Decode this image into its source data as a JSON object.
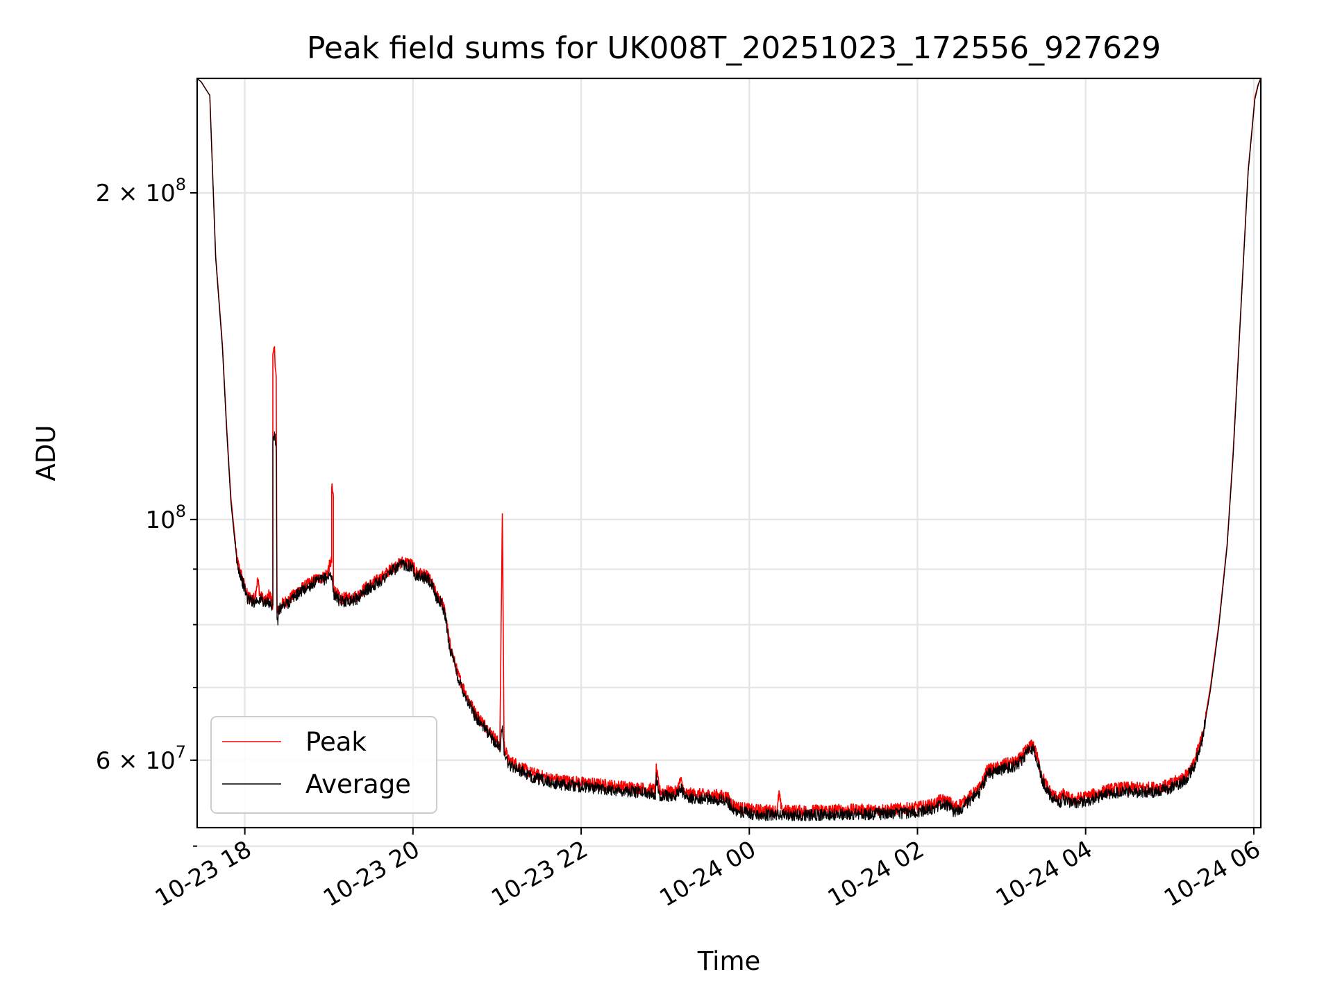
{
  "chart_data": {
    "type": "line",
    "title": "Peak field sums for UK008T_20251023_172556_927629",
    "xlabel": "Time",
    "ylabel": "ADU",
    "yscale": "log",
    "x_unit": "hours since 2025-10-23 17:25",
    "xlim": [
      0.0,
      12.65
    ],
    "ylim": [
      52000000,
      255000000
    ],
    "grid": true,
    "legend_position": "lower-left",
    "x_ticks": [
      {
        "value": 0.5667,
        "label": "10-23 18"
      },
      {
        "value": 2.5667,
        "label": "10-23 20"
      },
      {
        "value": 4.5667,
        "label": "10-23 22"
      },
      {
        "value": 6.5667,
        "label": "10-24 00"
      },
      {
        "value": 8.5667,
        "label": "10-24 02"
      },
      {
        "value": 10.5667,
        "label": "10-24 04"
      },
      {
        "value": 12.5667,
        "label": "10-24 06"
      }
    ],
    "y_major_ticks": [
      {
        "value": 60000000,
        "label": "6 × 10",
        "exp": "7"
      },
      {
        "value": 100000000,
        "label": "10",
        "exp": "8"
      },
      {
        "value": 200000000,
        "label": "2 × 10",
        "exp": "8"
      }
    ],
    "y_minor_ticks": [
      50000000,
      60000000,
      70000000,
      80000000,
      90000000,
      200000000
    ],
    "series": [
      {
        "name": "Peak",
        "color": "#ff0000",
        "points": [
          [
            0.0,
            255000000
          ],
          [
            0.05,
            253000000
          ],
          [
            0.12,
            248000000
          ],
          [
            0.15,
            246000000
          ],
          [
            0.22,
            175000000
          ],
          [
            0.3,
            145000000
          ],
          [
            0.35,
            122000000
          ],
          [
            0.4,
            105000000
          ],
          [
            0.45,
            96000000
          ],
          [
            0.47,
            92000000
          ],
          [
            0.55,
            87500000
          ],
          [
            0.6,
            85000000
          ],
          [
            0.68,
            84500000
          ],
          [
            0.72,
            88000000
          ],
          [
            0.75,
            85000000
          ],
          [
            0.82,
            84000000
          ],
          [
            0.86,
            85500000
          ],
          [
            0.9,
            83500000
          ],
          [
            0.9,
            141000000
          ],
          [
            0.92,
            143000000
          ],
          [
            0.94,
            135000000
          ],
          [
            0.95,
            82000000
          ],
          [
            1.0,
            83500000
          ],
          [
            1.1,
            84500000
          ],
          [
            1.2,
            86000000
          ],
          [
            1.4,
            88000000
          ],
          [
            1.5,
            88500000
          ],
          [
            1.55,
            89500000
          ],
          [
            1.58,
            91000000
          ],
          [
            1.6,
            91500000
          ],
          [
            1.6,
            107000000
          ],
          [
            1.62,
            105000000
          ],
          [
            1.62,
            86500000
          ],
          [
            1.7,
            84500000
          ],
          [
            1.9,
            85000000
          ],
          [
            2.0,
            86500000
          ],
          [
            2.1,
            87500000
          ],
          [
            2.2,
            88500000
          ],
          [
            2.3,
            90000000
          ],
          [
            2.45,
            91500000
          ],
          [
            2.55,
            91000000
          ],
          [
            2.6,
            89500000
          ],
          [
            2.75,
            88500000
          ],
          [
            2.8,
            87000000
          ],
          [
            2.85,
            85000000
          ],
          [
            2.9,
            84500000
          ],
          [
            2.95,
            82000000
          ],
          [
            3.0,
            77000000
          ],
          [
            3.1,
            72000000
          ],
          [
            3.2,
            69000000
          ],
          [
            3.3,
            66500000
          ],
          [
            3.5,
            63500000
          ],
          [
            3.6,
            62000000
          ],
          [
            3.63,
            102000000
          ],
          [
            3.65,
            62000000
          ],
          [
            3.7,
            60000000
          ],
          [
            3.8,
            59500000
          ],
          [
            3.95,
            58500000
          ],
          [
            4.2,
            57700000
          ],
          [
            4.5,
            57300000
          ],
          [
            4.8,
            57000000
          ],
          [
            5.1,
            56700000
          ],
          [
            5.45,
            56400000
          ],
          [
            5.46,
            58800000
          ],
          [
            5.5,
            56200000
          ],
          [
            5.7,
            56100000
          ],
          [
            5.75,
            57500000
          ],
          [
            5.8,
            55900000
          ],
          [
            6.2,
            55700000
          ],
          [
            6.3,
            55500000
          ],
          [
            6.4,
            54400000
          ],
          [
            6.6,
            54000000
          ],
          [
            6.9,
            53900000
          ],
          [
            6.92,
            56000000
          ],
          [
            6.95,
            53900000
          ],
          [
            7.2,
            53900000
          ],
          [
            7.6,
            54000000
          ],
          [
            8.0,
            54000000
          ],
          [
            8.3,
            54100000
          ],
          [
            8.5,
            54200000
          ],
          [
            8.75,
            54600000
          ],
          [
            8.85,
            55200000
          ],
          [
            8.95,
            54900000
          ],
          [
            9.0,
            54300000
          ],
          [
            9.1,
            54800000
          ],
          [
            9.3,
            56500000
          ],
          [
            9.4,
            58800000
          ],
          [
            9.5,
            59000000
          ],
          [
            9.6,
            59500000
          ],
          [
            9.75,
            59800000
          ],
          [
            9.9,
            61800000
          ],
          [
            9.95,
            62000000
          ],
          [
            10.05,
            58000000
          ],
          [
            10.15,
            56000000
          ],
          [
            10.25,
            55300000
          ],
          [
            10.3,
            55800000
          ],
          [
            10.4,
            55200000
          ],
          [
            10.6,
            55600000
          ],
          [
            10.85,
            56400000
          ],
          [
            11.0,
            56600000
          ],
          [
            11.15,
            56600000
          ],
          [
            11.35,
            56600000
          ],
          [
            11.55,
            56900000
          ],
          [
            11.75,
            58000000
          ],
          [
            11.85,
            59500000
          ],
          [
            11.95,
            63000000
          ],
          [
            12.05,
            70000000
          ],
          [
            12.15,
            80000000
          ],
          [
            12.25,
            95000000
          ],
          [
            12.32,
            115000000
          ],
          [
            12.4,
            150000000
          ],
          [
            12.5,
            210000000
          ],
          [
            12.58,
            245000000
          ],
          [
            12.62,
            252000000
          ],
          [
            12.65,
            255000000
          ]
        ]
      },
      {
        "name": "Average",
        "color": "#000000",
        "points": [
          [
            0.0,
            255000000
          ],
          [
            0.05,
            253000000
          ],
          [
            0.12,
            248000000
          ],
          [
            0.15,
            246000000
          ],
          [
            0.22,
            174000000
          ],
          [
            0.3,
            144000000
          ],
          [
            0.35,
            121000000
          ],
          [
            0.4,
            104000000
          ],
          [
            0.45,
            95000000
          ],
          [
            0.47,
            91500000
          ],
          [
            0.55,
            87000000
          ],
          [
            0.6,
            84500000
          ],
          [
            0.68,
            84000000
          ],
          [
            0.75,
            84500000
          ],
          [
            0.82,
            83500000
          ],
          [
            0.86,
            84000000
          ],
          [
            0.9,
            83000000
          ],
          [
            0.9,
            118000000
          ],
          [
            0.92,
            120000000
          ],
          [
            0.94,
            116000000
          ],
          [
            0.95,
            81500000
          ],
          [
            0.96,
            80000000
          ],
          [
            0.97,
            82500000
          ],
          [
            1.0,
            83000000
          ],
          [
            1.1,
            84000000
          ],
          [
            1.2,
            85500000
          ],
          [
            1.4,
            87500000
          ],
          [
            1.5,
            88000000
          ],
          [
            1.6,
            89000000
          ],
          [
            1.62,
            85500000
          ],
          [
            1.7,
            84000000
          ],
          [
            1.9,
            84500000
          ],
          [
            2.0,
            86000000
          ],
          [
            2.1,
            87000000
          ],
          [
            2.2,
            88000000
          ],
          [
            2.3,
            89500000
          ],
          [
            2.45,
            91000000
          ],
          [
            2.55,
            90500000
          ],
          [
            2.6,
            89000000
          ],
          [
            2.75,
            88000000
          ],
          [
            2.8,
            86500000
          ],
          [
            2.85,
            84500000
          ],
          [
            2.9,
            84000000
          ],
          [
            2.95,
            81500000
          ],
          [
            3.0,
            76500000
          ],
          [
            3.1,
            71500000
          ],
          [
            3.2,
            68500000
          ],
          [
            3.3,
            66000000
          ],
          [
            3.5,
            63000000
          ],
          [
            3.6,
            61500000
          ],
          [
            3.63,
            64500000
          ],
          [
            3.65,
            61300000
          ],
          [
            3.7,
            59500000
          ],
          [
            3.8,
            59000000
          ],
          [
            3.95,
            58000000
          ],
          [
            4.2,
            57200000
          ],
          [
            4.5,
            56800000
          ],
          [
            4.8,
            56500000
          ],
          [
            5.1,
            56200000
          ],
          [
            5.45,
            55900000
          ],
          [
            5.46,
            57800000
          ],
          [
            5.5,
            55700000
          ],
          [
            5.7,
            55600000
          ],
          [
            5.75,
            56800000
          ],
          [
            5.8,
            55400000
          ],
          [
            6.2,
            55200000
          ],
          [
            6.3,
            55000000
          ],
          [
            6.4,
            53900000
          ],
          [
            6.6,
            53500000
          ],
          [
            6.9,
            53400000
          ],
          [
            7.2,
            53400000
          ],
          [
            7.6,
            53500000
          ],
          [
            8.0,
            53500000
          ],
          [
            8.3,
            53600000
          ],
          [
            8.5,
            53700000
          ],
          [
            8.75,
            54100000
          ],
          [
            8.85,
            54700000
          ],
          [
            8.95,
            54400000
          ],
          [
            9.0,
            53800000
          ],
          [
            9.1,
            54300000
          ],
          [
            9.3,
            56000000
          ],
          [
            9.4,
            58300000
          ],
          [
            9.5,
            58500000
          ],
          [
            9.6,
            59000000
          ],
          [
            9.75,
            59300000
          ],
          [
            9.9,
            61300000
          ],
          [
            9.95,
            61500000
          ],
          [
            10.05,
            57500000
          ],
          [
            10.15,
            55500000
          ],
          [
            10.25,
            54800000
          ],
          [
            10.3,
            55300000
          ],
          [
            10.4,
            54700000
          ],
          [
            10.6,
            55100000
          ],
          [
            10.85,
            55900000
          ],
          [
            11.0,
            56100000
          ],
          [
            11.15,
            56100000
          ],
          [
            11.35,
            56100000
          ],
          [
            11.55,
            56400000
          ],
          [
            11.75,
            57500000
          ],
          [
            11.85,
            59000000
          ],
          [
            11.95,
            62500000
          ],
          [
            12.05,
            69500000
          ],
          [
            12.15,
            79500000
          ],
          [
            12.25,
            94500000
          ],
          [
            12.32,
            114000000
          ],
          [
            12.4,
            149000000
          ],
          [
            12.5,
            209000000
          ],
          [
            12.58,
            244000000
          ],
          [
            12.62,
            251500000
          ],
          [
            12.65,
            255000000
          ]
        ]
      }
    ]
  }
}
